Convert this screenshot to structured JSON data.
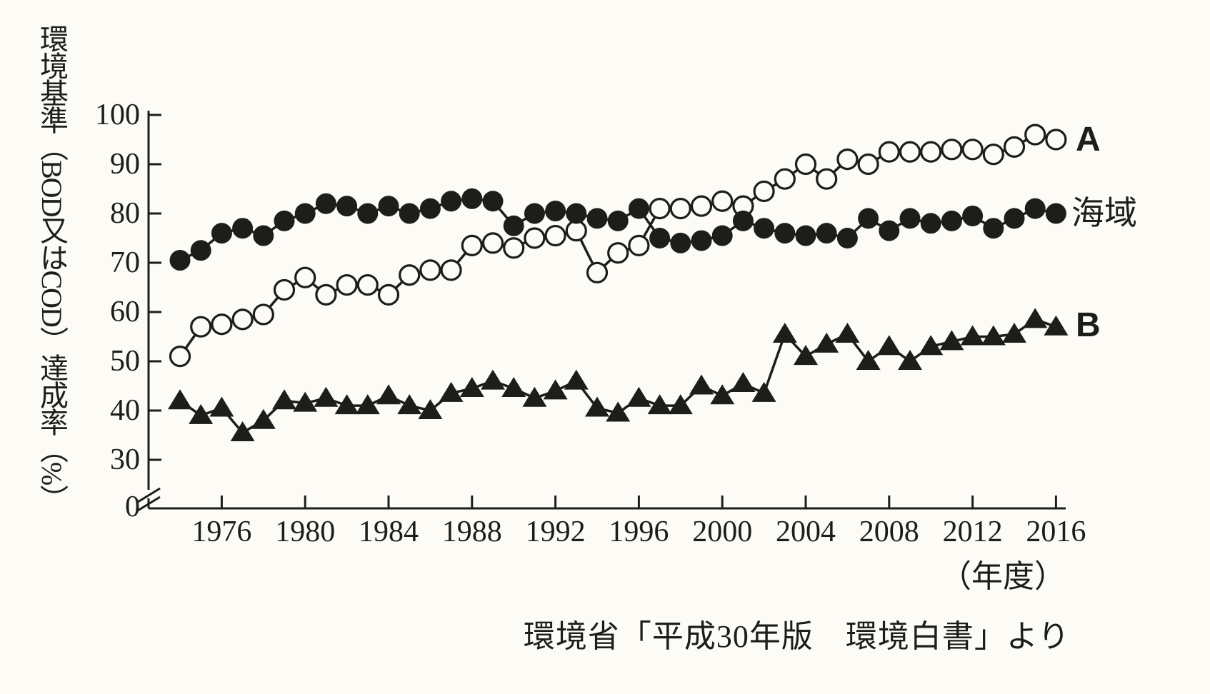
{
  "figure": {
    "background": "#fcfbf6",
    "ink_color": "#1d1d1b",
    "ylabel": "環境基準（BOD又はCOD）達成率（%）",
    "x_unit_label": "（年度）",
    "source": "環境省「平成30年版　環境白書」より"
  },
  "chart_data": {
    "type": "line",
    "title": "",
    "xlabel": "年度",
    "ylabel": "環境基準（BOD又はCOD）達成率（%）",
    "grid": false,
    "axis_break_between_0_and_30": true,
    "ylim": [
      0,
      100
    ],
    "display_range": [
      30,
      100
    ],
    "y_ticks": [
      100,
      90,
      80,
      70,
      60,
      50,
      40,
      30
    ],
    "y_origin_label": "0",
    "x_ticks": [
      1976,
      1980,
      1984,
      1988,
      1992,
      1996,
      2000,
      2004,
      2008,
      2012,
      2016
    ],
    "x": [
      1974,
      1975,
      1976,
      1977,
      1978,
      1979,
      1980,
      1981,
      1982,
      1983,
      1984,
      1985,
      1986,
      1987,
      1988,
      1989,
      1990,
      1991,
      1992,
      1993,
      1994,
      1995,
      1996,
      1997,
      1998,
      1999,
      2000,
      2001,
      2002,
      2003,
      2004,
      2005,
      2006,
      2007,
      2008,
      2009,
      2010,
      2011,
      2012,
      2013,
      2014,
      2015,
      2016
    ],
    "series": [
      {
        "name": "A",
        "marker": "open-circle",
        "legend_position": "right-of-last-point",
        "values": [
          51,
          57,
          57.5,
          58.5,
          59.5,
          64.5,
          67,
          63.5,
          65.5,
          65.5,
          63.5,
          67.5,
          68.5,
          68.5,
          73.5,
          74,
          73,
          75,
          75.5,
          76.5,
          68,
          72,
          73.5,
          81,
          81,
          81.5,
          82.5,
          81.5,
          84.5,
          87,
          90,
          87,
          91,
          90,
          92.5,
          92.5,
          92.5,
          93,
          93,
          92,
          93.5,
          96,
          95
        ]
      },
      {
        "name": "海域",
        "marker": "filled-circle",
        "legend_position": "right-of-last-point",
        "values": [
          70.5,
          72.5,
          76,
          77,
          75.5,
          78.5,
          80,
          82,
          81.5,
          80,
          81.5,
          80,
          81,
          82.5,
          83,
          82.5,
          77.5,
          80,
          80.5,
          80,
          79,
          78.5,
          81,
          75,
          74,
          74.5,
          75.5,
          78.5,
          77,
          76,
          75.5,
          76,
          75,
          79,
          76.5,
          79,
          78,
          78.5,
          79.5,
          77,
          79,
          81,
          80
        ]
      },
      {
        "name": "B",
        "marker": "filled-triangle",
        "legend_position": "right-of-last-point",
        "values": [
          42,
          39,
          40.5,
          35.5,
          38,
          42,
          41.5,
          42.5,
          41,
          41,
          43,
          41,
          40,
          43.5,
          44.5,
          46,
          44.5,
          42.5,
          44,
          46,
          40.5,
          39.5,
          42.5,
          41,
          41,
          45,
          43,
          45.5,
          43.5,
          55.5,
          51,
          53.5,
          55.5,
          50,
          53,
          50,
          53,
          54,
          55,
          55,
          55.5,
          58.5,
          57
        ]
      }
    ]
  }
}
